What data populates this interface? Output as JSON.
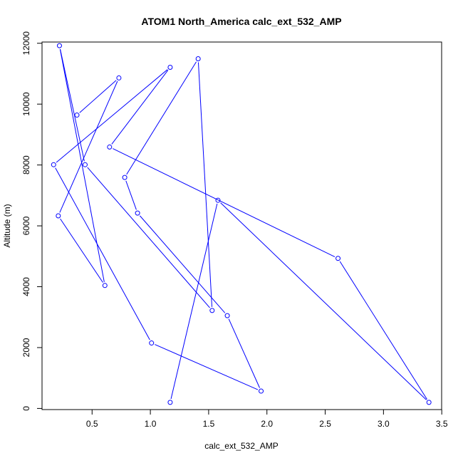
{
  "chart_data": {
    "type": "line",
    "title": "ATOM1 North_America calc_ext_532_AMP",
    "xlabel": "calc_ext_532_AMP",
    "ylabel": "Altitude (m)",
    "xlim": [
      0.15,
      3.45
    ],
    "ylim": [
      150,
      11900
    ],
    "xticks": [
      "0.5",
      "1.0",
      "1.5",
      "2.0",
      "2.5",
      "3.0",
      "3.5"
    ],
    "yticks": [
      "0",
      "2000",
      "4000",
      "6000",
      "8000",
      "10000",
      "12000"
    ],
    "grid": false,
    "legend": "none",
    "series": [
      {
        "color": "#0000ff",
        "marker": "open-circle",
        "points": [
          {
            "x": 1.17,
            "y": 200
          },
          {
            "x": 1.58,
            "y": 6840
          },
          {
            "x": 3.39,
            "y": 200
          },
          {
            "x": 2.61,
            "y": 4930
          },
          {
            "x": 0.65,
            "y": 8590
          },
          {
            "x": 1.17,
            "y": 11210
          },
          {
            "x": 0.17,
            "y": 8010
          },
          {
            "x": 1.01,
            "y": 2150
          },
          {
            "x": 1.95,
            "y": 570
          },
          {
            "x": 1.66,
            "y": 3050
          },
          {
            "x": 0.89,
            "y": 6420
          },
          {
            "x": 0.78,
            "y": 7590
          },
          {
            "x": 1.41,
            "y": 11490
          },
          {
            "x": 1.53,
            "y": 3220
          },
          {
            "x": 0.44,
            "y": 8010
          },
          {
            "x": 0.22,
            "y": 11920
          },
          {
            "x": 0.61,
            "y": 4040
          },
          {
            "x": 0.21,
            "y": 6330
          },
          {
            "x": 0.73,
            "y": 10860
          },
          {
            "x": 0.37,
            "y": 9640
          }
        ]
      }
    ]
  }
}
